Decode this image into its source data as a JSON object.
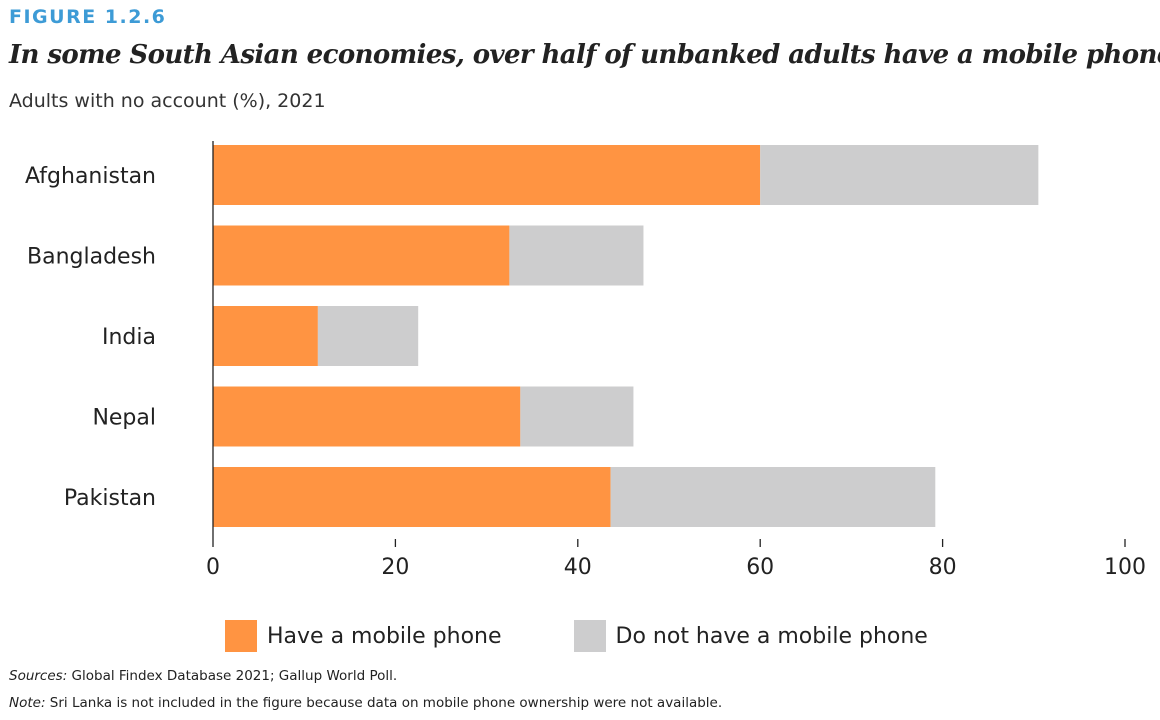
{
  "figure_label": "FIGURE 1.2.6",
  "title": "In some South Asian economies, over half of unbanked adults have a mobile phone",
  "subtitle": "Adults with no account (%), 2021",
  "colors": {
    "have_phone": "#ff9442",
    "no_phone": "#cdcdce",
    "axis": "#222222"
  },
  "chart_data": {
    "type": "bar",
    "orientation": "horizontal",
    "stacked": true,
    "categories": [
      "Afghanistan",
      "Bangladesh",
      "India",
      "Nepal",
      "Pakistan"
    ],
    "series": [
      {
        "name": "Have a mobile phone",
        "values": [
          60,
          32.5,
          11.5,
          33.7,
          43.6
        ]
      },
      {
        "name": "Do not have a mobile phone",
        "values": [
          30.5,
          14.7,
          11,
          12.4,
          35.6
        ]
      }
    ],
    "xlim": [
      0,
      100
    ],
    "xticks": [
      0,
      20,
      40,
      60,
      80,
      100
    ],
    "legend_position": "bottom",
    "grid": false
  },
  "legend": {
    "have_phone_label": "Have a mobile phone",
    "no_phone_label": "Do not have a mobile phone"
  },
  "sources": {
    "label": "Sources:",
    "text": " Global Findex Database 2021; Gallup World Poll."
  },
  "note": {
    "label": "Note:",
    "text": " Sri Lanka is not included in the figure because data on mobile phone ownership were not available."
  }
}
